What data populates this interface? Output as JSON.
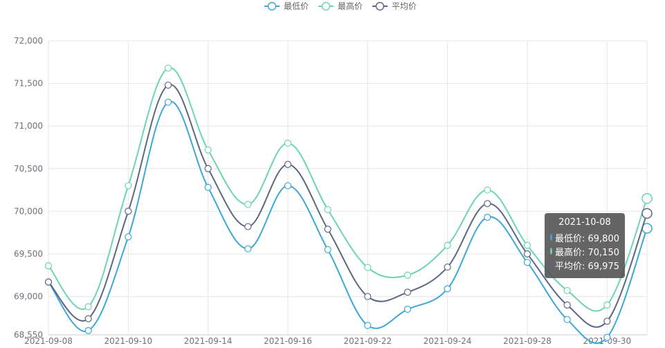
{
  "chart_data": {
    "type": "line",
    "title": "",
    "xlabel": "",
    "ylabel": "",
    "ylim": [
      68550,
      72000
    ],
    "yticks": [
      68550,
      69000,
      69500,
      70000,
      70500,
      71000,
      71500,
      72000
    ],
    "ytick_labels": [
      "68,550",
      "69,000",
      "69,500",
      "70,000",
      "70,500",
      "71,000",
      "71,500",
      "72,000"
    ],
    "x_tick_labels": [
      "2021-09-08",
      "2021-09-10",
      "2021-09-14",
      "2021-09-16",
      "2021-09-22",
      "2021-09-24",
      "2021-09-28",
      "2021-09-30"
    ],
    "x_tick_indices": [
      0,
      2,
      4,
      6,
      8,
      10,
      12,
      14
    ],
    "smooth": true,
    "grid": true,
    "legend_position": "top-center",
    "series": [
      {
        "name": "最低价",
        "color": "#3ba7d6",
        "values": [
          69170,
          68600,
          69700,
          71280,
          70280,
          69560,
          70300,
          69550,
          68660,
          68850,
          69090,
          69930,
          69400,
          68730,
          68520,
          69800
        ]
      },
      {
        "name": "最高价",
        "color": "#6ad5b5",
        "values": [
          69360,
          68880,
          70300,
          71680,
          70720,
          70080,
          70800,
          70020,
          69340,
          69250,
          69600,
          70250,
          69600,
          69070,
          68900,
          70150
        ]
      },
      {
        "name": "平均价",
        "color": "#5d6585",
        "values": [
          69170,
          68740,
          70000,
          71480,
          70500,
          69820,
          70550,
          69790,
          69000,
          69050,
          69345,
          70090,
          69500,
          68900,
          68710,
          69975
        ]
      }
    ]
  },
  "tooltip": {
    "title": "2021-10-08",
    "rows": [
      {
        "label": "最低价: 69,800",
        "color": "#3ba7d6"
      },
      {
        "label": "最高价: 70,150",
        "color": "#6ad5b5"
      },
      {
        "label": "平均价: 69,975",
        "color": "#5d6585"
      }
    ]
  }
}
